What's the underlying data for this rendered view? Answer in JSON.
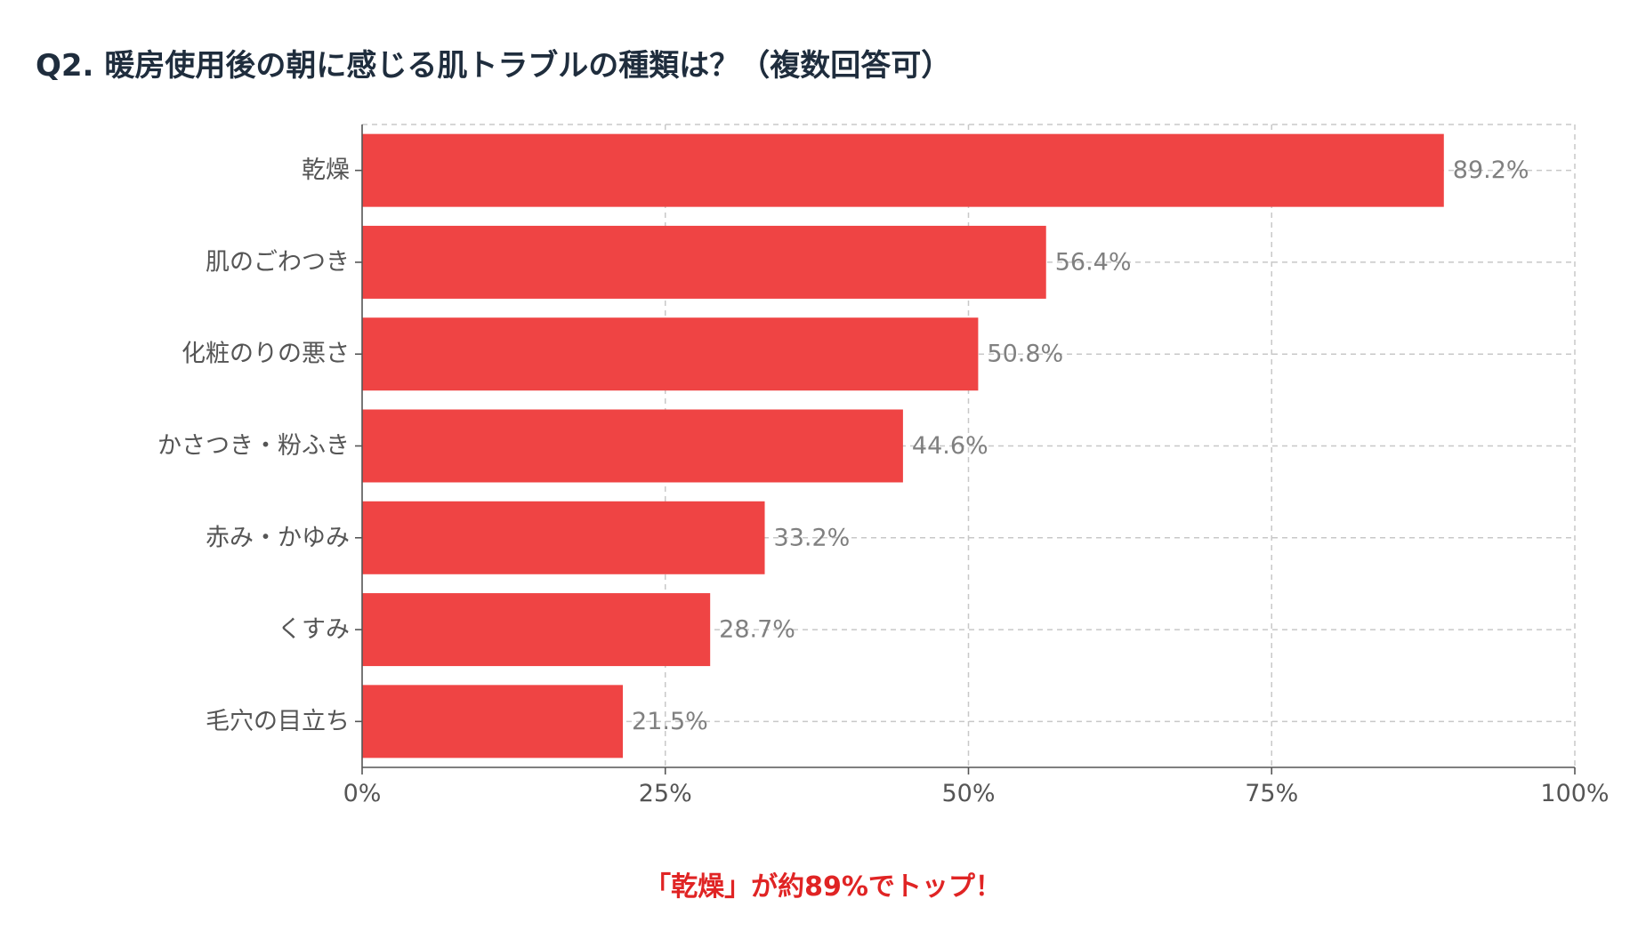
{
  "title": "Q2. 暖房使用後の朝に感じる肌トラブルの種類は？（複数回答可）",
  "footnote": "「乾燥」が約89%でトップ！",
  "colors": {
    "bar": "#ef4444",
    "title": "#1f2d3d",
    "footnote": "#e02424"
  },
  "chart_data": {
    "type": "bar",
    "orientation": "horizontal",
    "title": "Q2. 暖房使用後の朝に感じる肌トラブルの種類は？（複数回答可）",
    "categories": [
      "乾燥",
      "肌のごわつき",
      "化粧のりの悪さ",
      "かさつき・粉ふき",
      "赤み・かゆみ",
      "くすみ",
      "毛穴の目立ち"
    ],
    "values": [
      89.2,
      56.4,
      50.8,
      44.6,
      33.2,
      28.7,
      21.5
    ],
    "value_labels": [
      "89.2%",
      "56.4%",
      "50.8%",
      "44.6%",
      "33.2%",
      "28.7%",
      "21.5%"
    ],
    "xlim": [
      0,
      100
    ],
    "xticks": [
      0,
      25,
      50,
      75,
      100
    ],
    "xtick_labels": [
      "0%",
      "25%",
      "50%",
      "75%",
      "100%"
    ],
    "xlabel": "",
    "ylabel": "",
    "grid": true,
    "legend": "none"
  }
}
